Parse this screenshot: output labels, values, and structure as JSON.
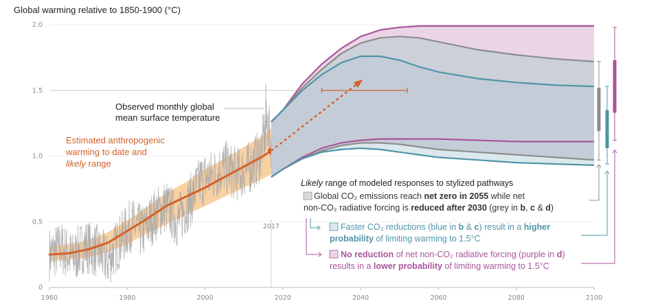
{
  "chart_data": {
    "type": "line",
    "title": "Global warming relative to 1850-1900 (°C)",
    "xlim": [
      1960,
      2100
    ],
    "ylim": [
      0,
      2.0
    ],
    "x_ticks": [
      "1960",
      "1980",
      "2000",
      "2020",
      "2040",
      "2060",
      "2080",
      "2100"
    ],
    "y_ticks": [
      "0",
      "0.5",
      "1.0",
      "1.5",
      "2.0"
    ],
    "reference_year_label": "2017",
    "colors": {
      "observed": "#a8a8a8",
      "anthropogenic": "#d4612a",
      "anthropogenic_band": "#f7c993",
      "grey": "#8c8c8c",
      "blue": "#4f94a8",
      "purple": "#a8559a"
    },
    "series": [
      {
        "name": "Observed monthly global mean surface temperature",
        "key": "observed",
        "x": [
          1960,
          1963,
          1966,
          1969,
          1972,
          1975,
          1978,
          1981,
          1984,
          1987,
          1990,
          1993,
          1996,
          1999,
          2002,
          2005,
          2008,
          2011,
          2014,
          2016,
          2017
        ],
        "values": [
          0.25,
          0.3,
          0.22,
          0.32,
          0.28,
          0.2,
          0.35,
          0.48,
          0.42,
          0.55,
          0.62,
          0.5,
          0.65,
          0.82,
          0.85,
          0.92,
          0.86,
          0.9,
          1.0,
          1.25,
          1.1
        ]
      },
      {
        "name": "Estimated anthropogenic warming to date",
        "key": "anthropogenic",
        "x": [
          1960,
          1965,
          1970,
          1975,
          1980,
          1985,
          1990,
          1995,
          2000,
          2005,
          2010,
          2015,
          2017
        ],
        "values": [
          0.25,
          0.26,
          0.29,
          0.34,
          0.43,
          0.52,
          0.62,
          0.69,
          0.76,
          0.84,
          0.92,
          1.0,
          1.04
        ],
        "lower": [
          0.2,
          0.21,
          0.23,
          0.27,
          0.33,
          0.41,
          0.48,
          0.55,
          0.62,
          0.69,
          0.76,
          0.83,
          0.86
        ],
        "upper": [
          0.31,
          0.33,
          0.36,
          0.42,
          0.51,
          0.61,
          0.72,
          0.8,
          0.9,
          0.98,
          1.07,
          1.16,
          1.21
        ]
      },
      {
        "name": "Projection to 1.5 °C",
        "key": "projection",
        "x": [
          2017,
          2040
        ],
        "values": [
          1.04,
          1.57
        ],
        "range_x": [
          2030,
          2052
        ],
        "range_y": 1.5
      },
      {
        "name": "Grey pathway range",
        "key": "grey",
        "x": [
          2017,
          2020,
          2025,
          2030,
          2035,
          2040,
          2045,
          2050,
          2055,
          2060,
          2070,
          2080,
          2090,
          2100
        ],
        "upper": [
          1.26,
          1.35,
          1.52,
          1.66,
          1.78,
          1.86,
          1.9,
          1.91,
          1.9,
          1.87,
          1.81,
          1.77,
          1.74,
          1.72
        ],
        "lower": [
          0.84,
          0.9,
          0.98,
          1.04,
          1.08,
          1.1,
          1.1,
          1.09,
          1.07,
          1.05,
          1.03,
          1.01,
          0.99,
          0.97
        ]
      },
      {
        "name": "Blue pathway range",
        "key": "blue",
        "x": [
          2017,
          2020,
          2025,
          2030,
          2035,
          2040,
          2045,
          2050,
          2055,
          2060,
          2070,
          2080,
          2090,
          2100
        ],
        "upper": [
          1.26,
          1.35,
          1.5,
          1.62,
          1.71,
          1.76,
          1.76,
          1.73,
          1.68,
          1.64,
          1.59,
          1.56,
          1.54,
          1.53
        ],
        "lower": [
          0.84,
          0.9,
          0.98,
          1.03,
          1.05,
          1.06,
          1.05,
          1.03,
          1.01,
          0.99,
          0.97,
          0.95,
          0.94,
          0.93
        ]
      },
      {
        "name": "Purple pathway range",
        "key": "purple",
        "x": [
          2017,
          2020,
          2025,
          2030,
          2035,
          2040,
          2045,
          2050,
          2055,
          2060,
          2070,
          2080,
          2090,
          2100
        ],
        "upper": [
          1.26,
          1.35,
          1.55,
          1.7,
          1.82,
          1.91,
          1.96,
          1.98,
          1.99,
          1.99,
          1.99,
          1.99,
          1.99,
          1.99
        ],
        "lower": [
          0.84,
          0.9,
          0.99,
          1.06,
          1.1,
          1.12,
          1.13,
          1.13,
          1.13,
          1.13,
          1.12,
          1.11,
          1.11,
          1.11
        ]
      }
    ],
    "side_bars": [
      {
        "key": "grey",
        "whisker": [
          0.97,
          1.72
        ],
        "box": [
          1.19,
          1.52
        ]
      },
      {
        "key": "blue",
        "whisker": [
          0.94,
          1.53
        ],
        "box": [
          1.06,
          1.35
        ]
      },
      {
        "key": "purple",
        "whisker": [
          1.12,
          1.98
        ],
        "box": [
          1.33,
          1.73
        ]
      }
    ],
    "annotations": {
      "observed_label": [
        "Observed monthly global",
        "mean surface temperature"
      ],
      "anthropogenic_label_1": "Estimated anthropogenic",
      "anthropogenic_label_2": "warming to date and",
      "anthropogenic_label_3_italic": "likely",
      "anthropogenic_label_3_rest": " range"
    },
    "legend": {
      "title_italic": "Likely",
      "title_rest": " range of modeled responses to stylized pathways",
      "grey_line1": [
        {
          "t": "Global CO₂ emissions reach ",
          "b": false
        },
        {
          "t": "net zero in 2055",
          "b": true
        },
        {
          "t": " while net",
          "b": false
        }
      ],
      "grey_line2": [
        {
          "t": "non-CO₂ radiative forcing is ",
          "b": false
        },
        {
          "t": "reduced after 2030",
          "b": true
        },
        {
          "t": " (grey in ",
          "b": false
        },
        {
          "t": "b",
          "b": true
        },
        {
          "t": ", ",
          "b": false
        },
        {
          "t": "c",
          "b": true
        },
        {
          "t": " & ",
          "b": false
        },
        {
          "t": "d",
          "b": true
        },
        {
          "t": ")",
          "b": false
        }
      ],
      "blue_line1": [
        {
          "t": "Faster CO₂ reductions (blue in ",
          "b": false
        },
        {
          "t": "b",
          "b": true
        },
        {
          "t": " & ",
          "b": false
        },
        {
          "t": "c",
          "b": true
        },
        {
          "t": ") result in a ",
          "b": false
        },
        {
          "t": "higher",
          "b": true
        }
      ],
      "blue_line2": [
        {
          "t": "probability",
          "b": true
        },
        {
          "t": " of limiting warming to 1.5°C",
          "b": false
        }
      ],
      "purple_line1": [
        {
          "t": "No reduction",
          "b": true
        },
        {
          "t": " of net non-CO₂ radiative forcing (purple in ",
          "b": false
        },
        {
          "t": "d",
          "b": true
        },
        {
          "t": ")",
          "b": false
        }
      ],
      "purple_line2": [
        {
          "t": "results in a ",
          "b": false
        },
        {
          "t": "lower probability",
          "b": true
        },
        {
          "t": " of limiting warming to 1.5°C",
          "b": false
        }
      ]
    }
  }
}
